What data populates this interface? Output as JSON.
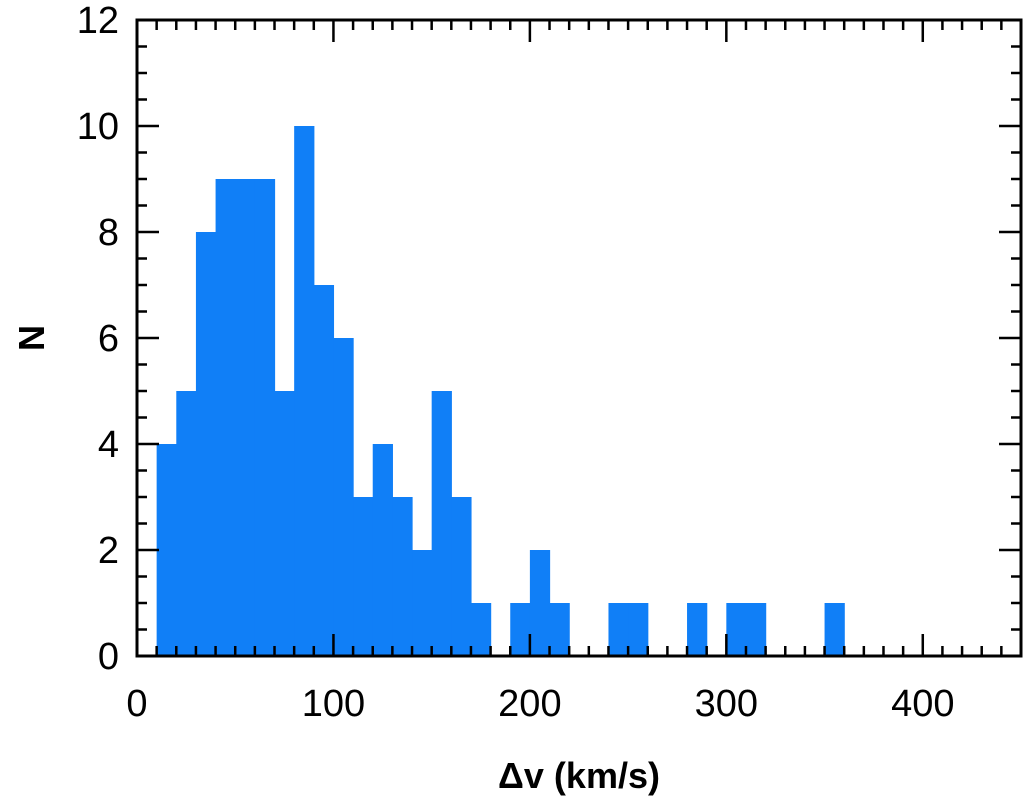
{
  "chart_data": {
    "type": "bar",
    "title": "",
    "xlabel": "Δv (km/s)",
    "ylabel": "N",
    "xlim": [
      0,
      450
    ],
    "ylim": [
      0,
      12
    ],
    "bin_width": 10,
    "bar_color": "#107ff7",
    "xticks": [
      0,
      100,
      200,
      300,
      400
    ],
    "yticks": [
      0,
      2,
      4,
      6,
      8,
      10,
      12
    ],
    "bins": [
      {
        "x0": 10,
        "x1": 20,
        "count": 4
      },
      {
        "x0": 20,
        "x1": 30,
        "count": 5
      },
      {
        "x0": 30,
        "x1": 40,
        "count": 8
      },
      {
        "x0": 40,
        "x1": 50,
        "count": 9
      },
      {
        "x0": 50,
        "x1": 60,
        "count": 9
      },
      {
        "x0": 60,
        "x1": 70,
        "count": 9
      },
      {
        "x0": 70,
        "x1": 80,
        "count": 5
      },
      {
        "x0": 80,
        "x1": 90,
        "count": 10
      },
      {
        "x0": 90,
        "x1": 100,
        "count": 7
      },
      {
        "x0": 100,
        "x1": 110,
        "count": 6
      },
      {
        "x0": 110,
        "x1": 120,
        "count": 3
      },
      {
        "x0": 120,
        "x1": 130,
        "count": 4
      },
      {
        "x0": 130,
        "x1": 140,
        "count": 3
      },
      {
        "x0": 140,
        "x1": 150,
        "count": 2
      },
      {
        "x0": 150,
        "x1": 160,
        "count": 5
      },
      {
        "x0": 160,
        "x1": 170,
        "count": 3
      },
      {
        "x0": 170,
        "x1": 180,
        "count": 1
      },
      {
        "x0": 190,
        "x1": 200,
        "count": 1
      },
      {
        "x0": 200,
        "x1": 210,
        "count": 2
      },
      {
        "x0": 210,
        "x1": 220,
        "count": 1
      },
      {
        "x0": 240,
        "x1": 250,
        "count": 1
      },
      {
        "x0": 250,
        "x1": 260,
        "count": 1
      },
      {
        "x0": 280,
        "x1": 290,
        "count": 1
      },
      {
        "x0": 300,
        "x1": 310,
        "count": 1
      },
      {
        "x0": 310,
        "x1": 320,
        "count": 1
      },
      {
        "x0": 350,
        "x1": 360,
        "count": 1
      }
    ]
  }
}
